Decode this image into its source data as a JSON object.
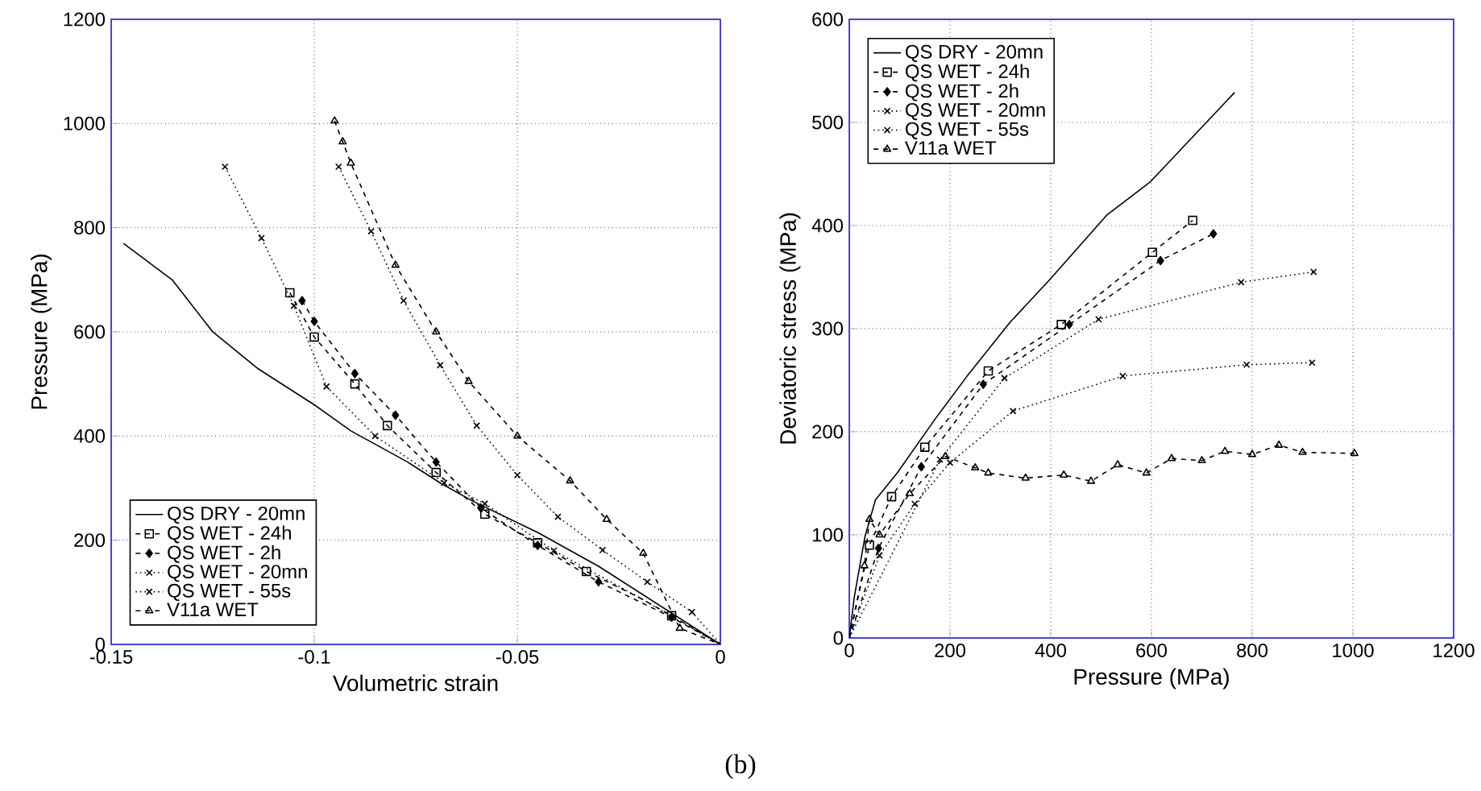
{
  "chart_data": [
    {
      "type": "line",
      "xlabel": "Volumetric strain",
      "ylabel": "Pressure (MPa)",
      "xlim": [
        -0.15,
        0
      ],
      "ylim": [
        0,
        1200
      ],
      "xticks": [
        -0.15,
        -0.1,
        -0.05,
        0
      ],
      "yticks": [
        0,
        200,
        400,
        600,
        800,
        1000,
        1200
      ],
      "grid": true,
      "legend": "bottom left",
      "annotations": [
        "(b)"
      ],
      "series": [
        {
          "name": "QS DRY - 20mn",
          "color": "#000000",
          "marker": "none",
          "line_style": "solid",
          "x": [
            -0.147,
            -0.135,
            -0.125,
            -0.114,
            -0.1,
            -0.091,
            -0.077,
            -0.069,
            -0.061,
            -0.045,
            -0.03,
            -0.015,
            0
          ],
          "values": [
            770,
            700,
            600,
            530,
            460,
            410,
            350,
            310,
            275,
            215,
            150,
            75,
            0
          ]
        },
        {
          "name": "QS WET - 24h",
          "color": "#000000",
          "marker": "square",
          "line_style": "dashed",
          "x": [
            -0.106,
            -0.1,
            -0.09,
            -0.082,
            -0.07,
            -0.058,
            -0.045,
            -0.033,
            -0.02,
            -0.012,
            0
          ],
          "values": [
            675,
            590,
            500,
            420,
            330,
            250,
            195,
            140,
            90,
            55,
            0
          ]
        },
        {
          "name": "QS WET - 2h",
          "color": "#000000",
          "marker": "diamond",
          "line_style": "dashed",
          "x": [
            -0.103,
            -0.1,
            -0.09,
            -0.08,
            -0.07,
            -0.059,
            -0.045,
            -0.03,
            -0.012,
            0
          ],
          "values": [
            660,
            620,
            520,
            440,
            350,
            262,
            190,
            120,
            52,
            0
          ]
        },
        {
          "name": "QS WET - 20mn",
          "color": "#000000",
          "marker": "cross",
          "line_style": "dotted",
          "x": [
            -0.122,
            -0.113,
            -0.105,
            -0.097,
            -0.085,
            -0.068,
            -0.058,
            -0.041,
            -0.02,
            0
          ],
          "values": [
            917,
            780,
            650,
            495,
            400,
            310,
            270,
            180,
            90,
            0
          ]
        },
        {
          "name": "QS WET - 55s",
          "color": "#000000",
          "marker": "cross",
          "line_style": "dotted",
          "x": [
            -0.094,
            -0.086,
            -0.078,
            -0.069,
            -0.06,
            -0.05,
            -0.04,
            -0.029,
            -0.018,
            -0.007,
            0
          ],
          "values": [
            917,
            793,
            660,
            536,
            420,
            325,
            245,
            181,
            120,
            62,
            0
          ]
        },
        {
          "name": "V11a WET",
          "color": "#000000",
          "marker": "triangle",
          "line_style": "dashed",
          "x": [
            -0.095,
            -0.093,
            -0.091,
            -0.08,
            -0.07,
            -0.062,
            -0.05,
            -0.037,
            -0.028,
            -0.019,
            -0.01,
            0
          ],
          "values": [
            1005,
            965,
            924,
            728,
            600,
            505,
            400,
            314,
            240,
            175,
            31,
            0
          ]
        }
      ]
    },
    {
      "type": "line",
      "xlabel": "Pressure (MPa)",
      "ylabel": "Deviatoric stress (MPa)",
      "xlim": [
        0,
        1200
      ],
      "ylim": [
        0,
        600
      ],
      "xticks": [
        0,
        200,
        400,
        600,
        800,
        1000,
        1200
      ],
      "yticks": [
        0,
        100,
        200,
        300,
        400,
        500,
        600
      ],
      "grid": true,
      "legend": "top left",
      "series": [
        {
          "name": "QS DRY - 20mn",
          "color": "#000000",
          "marker": "none",
          "line_style": "solid",
          "x": [
            0,
            10,
            31,
            52,
            95,
            170,
            234,
            319,
            399,
            511,
            597,
            765
          ],
          "values": [
            0,
            40,
            98,
            134,
            160,
            212,
            254,
            306,
            348,
            410,
            442,
            529
          ]
        },
        {
          "name": "QS WET - 24h",
          "color": "#000000",
          "marker": "square",
          "line_style": "dashed",
          "x": [
            0,
            40,
            84,
            150,
            276,
            421,
            602,
            682
          ],
          "values": [
            0,
            90,
            137,
            185,
            259,
            304,
            374,
            405
          ]
        },
        {
          "name": "QS WET - 2h",
          "color": "#000000",
          "marker": "diamond",
          "line_style": "dashed",
          "x": [
            0,
            58,
            143,
            266,
            437,
            618,
            723
          ],
          "values": [
            0,
            87,
            166,
            246,
            304,
            366,
            392
          ]
        },
        {
          "name": "QS WET - 20mn",
          "color": "#000000",
          "marker": "cross",
          "line_style": "dotted",
          "x": [
            0,
            180,
            308,
            495,
            778,
            922
          ],
          "values": [
            0,
            173,
            252,
            309,
            345,
            355
          ]
        },
        {
          "name": "QS WET - 55s",
          "color": "#000000",
          "marker": "cross",
          "line_style": "dotted",
          "x": [
            0,
            60,
            130,
            200,
            325,
            543,
            789,
            919
          ],
          "values": [
            0,
            80,
            130,
            170,
            220,
            254,
            265,
            267
          ]
        },
        {
          "name": "V11a WET",
          "color": "#000000",
          "marker": "triangle",
          "line_style": "dashed",
          "x": [
            0,
            30,
            40,
            60,
            120,
            191,
            250,
            276,
            350,
            426,
            480,
            533,
            590,
            640,
            700,
            746,
            800,
            853,
            900,
            1003
          ],
          "values": [
            0,
            70,
            115,
            100,
            140,
            176,
            165,
            160,
            155,
            158,
            152,
            168,
            160,
            174,
            172,
            181,
            178,
            187,
            180,
            179
          ]
        }
      ]
    }
  ]
}
